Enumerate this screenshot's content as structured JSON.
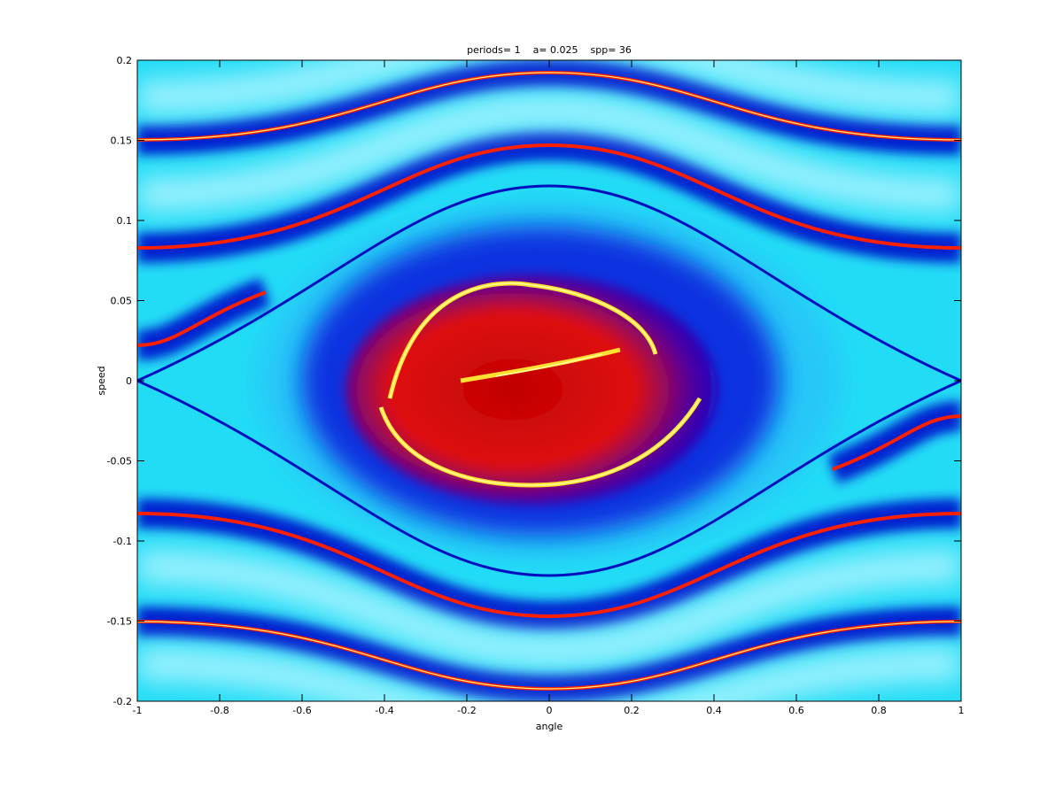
{
  "chart_data": {
    "type": "image",
    "title": "periods= 1    a= 0.025    spp= 36",
    "x_label": "angle",
    "y_label": "speed",
    "xlim": [
      -1,
      1
    ],
    "ylim": [
      -0.2,
      0.2
    ],
    "xticks": [
      -1,
      -0.8,
      -0.6,
      -0.4,
      -0.2,
      0,
      0.2,
      0.4,
      0.6,
      0.8,
      1
    ],
    "yticks": [
      -0.2,
      -0.15,
      -0.1,
      -0.05,
      0,
      0.05,
      0.1,
      0.15,
      0.2
    ]
  }
}
